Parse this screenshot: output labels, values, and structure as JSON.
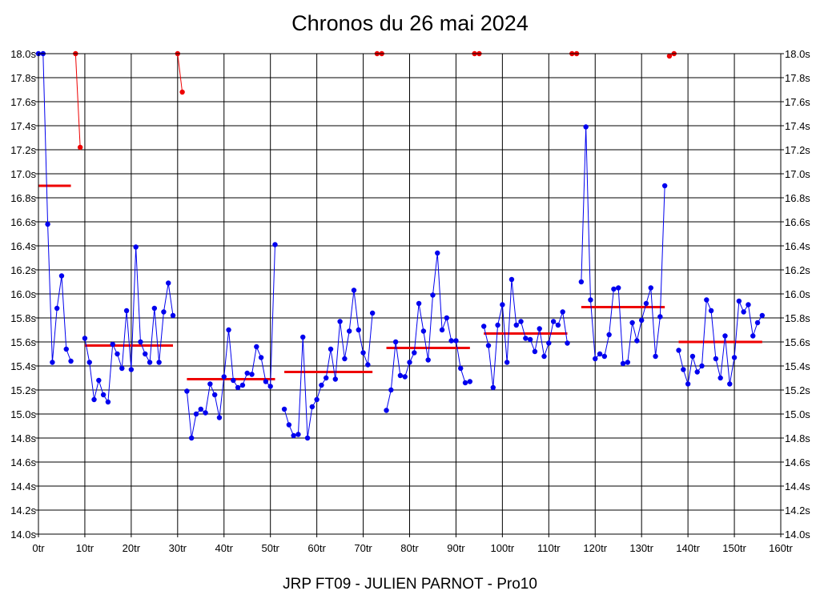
{
  "chart_data": {
    "type": "line",
    "title": "Chronos du 26 mai 2024",
    "footer": "JRP FT09 - JULIEN PARNOT - Pro10",
    "xlabel": "",
    "ylabel": "",
    "x_unit_suffix": "tr",
    "y_unit_suffix": "s",
    "xlim": [
      0,
      160
    ],
    "ylim": [
      14.0,
      18.0
    ],
    "x_ticks": [
      0,
      10,
      20,
      30,
      40,
      50,
      60,
      70,
      80,
      90,
      100,
      110,
      120,
      130,
      140,
      150,
      160
    ],
    "x_tick_labels": [
      "0tr",
      "10tr",
      "20tr",
      "30tr",
      "40tr",
      "50tr",
      "60tr",
      "70tr",
      "80tr",
      "90tr",
      "100tr",
      "110tr",
      "120tr",
      "130tr",
      "140tr",
      "150tr",
      "160tr"
    ],
    "y_ticks": [
      14.0,
      14.2,
      14.4,
      14.6,
      14.8,
      15.0,
      15.2,
      15.4,
      15.6,
      15.8,
      16.0,
      16.2,
      16.4,
      16.6,
      16.8,
      17.0,
      17.2,
      17.4,
      17.6,
      17.8,
      18.0
    ],
    "y_tick_labels": [
      "14.0s",
      "14.2s",
      "14.4s",
      "14.6s",
      "14.8s",
      "15.0s",
      "15.2s",
      "15.4s",
      "15.6s",
      "15.8s",
      "16.0s",
      "16.2s",
      "16.4s",
      "16.6s",
      "16.8s",
      "17.0s",
      "17.2s",
      "17.4s",
      "17.6s",
      "17.8s",
      "18.0s"
    ],
    "grid": true,
    "colors": {
      "laps": "#0000ee",
      "pit": "#ee0000",
      "average": "#ee0000",
      "grid": "#000000"
    },
    "stints": [
      {
        "x": [
          0,
          1,
          2,
          3,
          4,
          5,
          6,
          7
        ],
        "y": [
          18.0,
          18.0,
          16.58,
          15.43,
          15.88,
          16.15,
          15.54,
          15.44
        ]
      },
      {
        "x": [
          10,
          11,
          12,
          13,
          14,
          15,
          16,
          17,
          18,
          19,
          20,
          21,
          22,
          23,
          24,
          25,
          26,
          27,
          28,
          29
        ],
        "y": [
          15.63,
          15.43,
          15.12,
          15.28,
          15.16,
          15.1,
          15.58,
          15.5,
          15.38,
          15.86,
          15.37,
          16.39,
          15.6,
          15.5,
          15.43,
          15.88,
          15.43,
          15.85,
          16.09,
          15.82
        ]
      },
      {
        "x": [
          32,
          33,
          34,
          35,
          36,
          37,
          38,
          39,
          40,
          41,
          42,
          43,
          44,
          45,
          46,
          47,
          48,
          49,
          50,
          51
        ],
        "y": [
          15.19,
          14.8,
          15.0,
          15.04,
          15.01,
          15.25,
          15.16,
          14.97,
          15.31,
          15.7,
          15.28,
          15.22,
          15.24,
          15.34,
          15.33,
          15.56,
          15.47,
          15.27,
          15.23,
          16.41
        ]
      },
      {
        "x": [
          53,
          54,
          55,
          56,
          57,
          58,
          59,
          60,
          61,
          62,
          63,
          64,
          65,
          66,
          67,
          68,
          69,
          70,
          71,
          72
        ],
        "y": [
          15.04,
          14.91,
          14.82,
          14.83,
          15.64,
          14.8,
          15.06,
          15.12,
          15.24,
          15.3,
          15.54,
          15.29,
          15.77,
          15.46,
          15.69,
          16.03,
          15.7,
          15.51,
          15.41,
          15.84
        ]
      },
      {
        "x": [
          75,
          76,
          77,
          78,
          79,
          80,
          81,
          82,
          83,
          84,
          85,
          86,
          87,
          88,
          89,
          90,
          91,
          92,
          93
        ],
        "y": [
          15.03,
          15.2,
          15.6,
          15.32,
          15.31,
          15.43,
          15.51,
          15.92,
          15.69,
          15.45,
          15.99,
          16.34,
          15.7,
          15.8,
          15.61,
          15.61,
          15.38,
          15.26,
          15.27
        ]
      },
      {
        "x": [
          96,
          97,
          98,
          99,
          100,
          101,
          102,
          103,
          104,
          105,
          106,
          107,
          108,
          109,
          110,
          111,
          112,
          113,
          114
        ],
        "y": [
          15.73,
          15.57,
          15.22,
          15.74,
          15.91,
          15.43,
          16.12,
          15.74,
          15.77,
          15.63,
          15.62,
          15.52,
          15.71,
          15.48,
          15.59,
          15.77,
          15.74,
          15.85,
          15.59
        ]
      },
      {
        "x": [
          117,
          118,
          119,
          120,
          121,
          122,
          123,
          124,
          125,
          126,
          127,
          128,
          129,
          130,
          131,
          132,
          133,
          134,
          135
        ],
        "y": [
          16.1,
          17.39,
          15.95,
          15.46,
          15.5,
          15.48,
          15.66,
          16.04,
          16.05,
          15.42,
          15.43,
          15.76,
          15.61,
          15.78,
          15.92,
          16.05,
          15.48,
          15.81,
          16.9
        ]
      },
      {
        "x": [
          138,
          139,
          140,
          141,
          142,
          143,
          144,
          145,
          146,
          147,
          148,
          149,
          150,
          151,
          152,
          153,
          154,
          155,
          156
        ],
        "y": [
          15.53,
          15.37,
          15.25,
          15.48,
          15.35,
          15.4,
          15.95,
          15.86,
          15.46,
          15.3,
          15.65,
          15.25,
          15.47,
          15.94,
          15.85,
          15.91,
          15.65,
          15.76,
          15.82
        ]
      }
    ],
    "pit_segments": [
      {
        "x": [
          8,
          9
        ],
        "y": [
          18.0,
          17.22
        ]
      },
      {
        "x": [
          30,
          31
        ],
        "y": [
          18.0,
          17.68
        ]
      },
      {
        "x": [
          73,
          74
        ],
        "y": [
          18.0,
          18.0
        ]
      },
      {
        "x": [
          94,
          95
        ],
        "y": [
          18.0,
          18.0
        ]
      },
      {
        "x": [
          115,
          116
        ],
        "y": [
          18.0,
          18.0
        ]
      },
      {
        "x": [
          136,
          137
        ],
        "y": [
          17.98,
          18.0
        ]
      }
    ],
    "stint_averages": [
      {
        "x_start": 0,
        "x_end": 7,
        "y": 16.9
      },
      {
        "x_start": 10,
        "x_end": 29,
        "y": 15.57
      },
      {
        "x_start": 32,
        "x_end": 51,
        "y": 15.29
      },
      {
        "x_start": 53,
        "x_end": 72,
        "y": 15.35
      },
      {
        "x_start": 75,
        "x_end": 93,
        "y": 15.55
      },
      {
        "x_start": 96,
        "x_end": 114,
        "y": 15.67
      },
      {
        "x_start": 117,
        "x_end": 135,
        "y": 15.89
      },
      {
        "x_start": 138,
        "x_end": 156,
        "y": 15.6
      }
    ]
  }
}
